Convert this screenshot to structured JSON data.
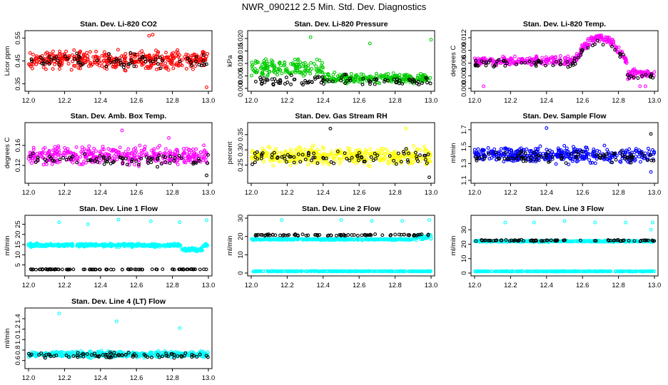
{
  "figure": {
    "title": "NWR_090212  2.5 Min. Std. Dev. Diagnostics"
  },
  "colors": {
    "red": "#ff0000",
    "green": "#00cc00",
    "magenta": "#ff00ff",
    "yellow": "#ffff00",
    "blue": "#0000ff",
    "cyan": "#00ffff",
    "black": "#000000"
  },
  "chart_data": [
    {
      "type": "scatter",
      "title": "Stan. Dev. Li-820 CO2",
      "ylabel": "Licor ppm",
      "xlim": [
        12.0,
        13.0
      ],
      "ylim": [
        0.33,
        0.57
      ],
      "xticks": [
        "12.0",
        "12.2",
        "12.4",
        "12.6",
        "12.8",
        "13.0"
      ],
      "yticks": [
        "0.35",
        "0.45",
        "0.55"
      ],
      "series": [
        {
          "color": "#ff0000",
          "x": [
            12.0,
            13.0
          ],
          "y": [
            0.34,
            0.56
          ],
          "summary": "dense band 0.36-0.55"
        },
        {
          "color": "#000000",
          "x": [
            12.0,
            13.0
          ],
          "y": [
            0.37,
            0.53
          ],
          "summary": "sparse points 0.37-0.53"
        }
      ]
    },
    {
      "type": "scatter",
      "title": "Stan. Dev. Li-820 Pressure",
      "ylabel": "kPa",
      "xlim": [
        12.0,
        13.0
      ],
      "ylim": [
        0.0,
        0.022
      ],
      "xticks": [
        "12.0",
        "12.2",
        "12.4",
        "12.6",
        "12.8",
        "13.0"
      ],
      "yticks": [
        "0.000",
        "0.005",
        "0.010",
        "0.015",
        "0.020"
      ],
      "series": [
        {
          "color": "#00cc00",
          "x": [
            12.0,
            13.0
          ],
          "y": [
            0.0,
            0.021
          ],
          "summary": "band 0.003-0.014 early, 0.001-0.006 later"
        },
        {
          "color": "#000000",
          "x": [
            12.0,
            13.0
          ],
          "y": [
            0.0,
            0.007
          ],
          "summary": "points 0-0.007"
        }
      ]
    },
    {
      "type": "scatter",
      "title": "Stan. Dev. Li-820 Temp.",
      "ylabel": "degrees C",
      "xlim": [
        12.0,
        13.0
      ],
      "ylim": [
        0.0,
        0.013
      ],
      "xticks": [
        "12.0",
        "12.2",
        "12.4",
        "12.6",
        "12.8",
        "13.0"
      ],
      "yticks": [
        "0.000",
        "0.003",
        "0.006",
        "0.009",
        "0.012"
      ],
      "series": [
        {
          "color": "#ff00ff",
          "x": [
            12.0,
            13.0
          ],
          "y": [
            0.0,
            0.013
          ],
          "summary": "~0.006 rising to peak ~0.012 near 12.7, falling to ~0.003"
        },
        {
          "color": "#000000",
          "x": [
            12.0,
            13.0
          ],
          "y": [
            0.002,
            0.012
          ],
          "summary": "follows magenta trend"
        }
      ]
    },
    {
      "type": "scatter",
      "title": "Stan. Dev. Amb. Box Temp.",
      "ylabel": "degrees C",
      "xlim": [
        12.0,
        13.0
      ],
      "ylim": [
        0.09,
        0.2
      ],
      "xticks": [
        "12.0",
        "12.2",
        "12.4",
        "12.6",
        "12.8",
        "13.0"
      ],
      "yticks": [
        "0.12",
        "0.16"
      ],
      "series": [
        {
          "color": "#ff00ff",
          "x": [
            12.0,
            13.0
          ],
          "y": [
            0.1,
            0.19
          ],
          "summary": "band 0.11-0.17"
        },
        {
          "color": "#000000",
          "x": [
            12.0,
            13.0
          ],
          "y": [
            0.1,
            0.15
          ],
          "summary": "points 0.11-0.15"
        }
      ]
    },
    {
      "type": "scatter",
      "title": "Stan. Dev. Gas Stream RH",
      "ylabel": "percent",
      "xlim": [
        12.0,
        13.0
      ],
      "ylim": [
        0.2,
        0.38
      ],
      "xticks": [
        "12.0",
        "12.2",
        "12.4",
        "12.6",
        "12.8",
        "13.0"
      ],
      "yticks": [
        "0.25",
        "0.30",
        "0.35"
      ],
      "series": [
        {
          "color": "#ffff00",
          "x": [
            12.0,
            13.0
          ],
          "y": [
            0.21,
            0.37
          ],
          "summary": "band 0.23-0.33"
        },
        {
          "color": "#000000",
          "x": [
            12.0,
            13.0
          ],
          "y": [
            0.21,
            0.37
          ],
          "summary": "points 0.23-0.32"
        }
      ]
    },
    {
      "type": "scatter",
      "title": "Stan. Dev. Sample Flow",
      "ylabel": "ml/min",
      "xlim": [
        12.0,
        13.0
      ],
      "ylim": [
        1.1,
        1.75
      ],
      "xticks": [
        "12.0",
        "12.2",
        "12.4",
        "12.6",
        "12.8",
        "13.0"
      ],
      "yticks": [
        "1.1",
        "1.3",
        "1.5",
        "1.7"
      ],
      "series": [
        {
          "color": "#0000ff",
          "x": [
            12.0,
            13.0
          ],
          "y": [
            1.15,
            1.72
          ],
          "summary": "band 1.2-1.55"
        },
        {
          "color": "#000000",
          "x": [
            12.0,
            13.0
          ],
          "y": [
            1.2,
            1.65
          ],
          "summary": "points 1.25-1.5"
        }
      ]
    },
    {
      "type": "scatter",
      "title": "Stan. Dev. Line 1 Flow",
      "ylabel": "ml/min",
      "xlim": [
        12.0,
        13.0
      ],
      "ylim": [
        1.0,
        28.0
      ],
      "xticks": [
        "12.0",
        "12.2",
        "12.4",
        "12.6",
        "12.8",
        "13.0"
      ],
      "yticks": [
        "5",
        "10",
        "15",
        "20",
        "25"
      ],
      "series": [
        {
          "color": "#00ffff",
          "x": [
            12.0,
            13.0
          ],
          "y": [
            11.0,
            27.0
          ],
          "summary": "band ~13-16, dip ~12 near 12.9, outliers ~26-27"
        },
        {
          "color": "#000000",
          "x": [
            12.0,
            13.0
          ],
          "y": [
            2.5,
            3.2
          ],
          "summary": "flat ~3"
        }
      ]
    },
    {
      "type": "scatter",
      "title": "Stan. Dev. Line 2 Flow",
      "ylabel": "ml/min",
      "xlim": [
        12.0,
        13.0
      ],
      "ylim": [
        0.0,
        30.0
      ],
      "xticks": [
        "12.0",
        "12.2",
        "12.4",
        "12.6",
        "12.8",
        "13.0"
      ],
      "yticks": [
        "0",
        "10",
        "20",
        "30"
      ],
      "series": [
        {
          "color": "#00ffff",
          "x": [
            12.0,
            13.0
          ],
          "y": [
            0.8,
            29.0
          ],
          "summary": "band ~18-19, low flat ~1, outliers ~28-29"
        },
        {
          "color": "#000000",
          "x": [
            12.0,
            13.0
          ],
          "y": [
            19.5,
            22.0
          ],
          "summary": "flat ~20-21"
        }
      ]
    },
    {
      "type": "scatter",
      "title": "Stan. Dev. Line 3 Flow",
      "ylabel": "ml/min",
      "xlim": [
        12.0,
        13.0
      ],
      "ylim": [
        0.0,
        38.0
      ],
      "xticks": [
        "12.0",
        "12.2",
        "12.4",
        "12.6",
        "12.8",
        "13.0"
      ],
      "yticks": [
        "0",
        "10",
        "20",
        "30"
      ],
      "series": [
        {
          "color": "#00ffff",
          "x": [
            12.0,
            13.0
          ],
          "y": [
            0.8,
            36.0
          ],
          "summary": "band ~22, low flat ~1, outliers ~35-36"
        },
        {
          "color": "#000000",
          "x": [
            12.0,
            13.0
          ],
          "y": [
            21.0,
            30.0
          ],
          "summary": "flat ~22-23"
        }
      ]
    },
    {
      "type": "scatter",
      "title": "Stan. Dev. Line 4 (LT) Flow",
      "ylabel": "ml/min",
      "xlim": [
        12.0,
        13.0
      ],
      "ylim": [
        0.5,
        1.55
      ],
      "xticks": [
        "12.0",
        "12.2",
        "12.4",
        "12.6",
        "12.8",
        "13.0"
      ],
      "yticks": [
        "0.6",
        "0.8",
        "1.0",
        "1.2",
        "1.4"
      ],
      "series": [
        {
          "color": "#00ffff",
          "x": [
            12.0,
            13.0
          ],
          "y": [
            0.55,
            1.5
          ],
          "summary": "band 0.6-0.85, outliers ~1.2-1.5"
        },
        {
          "color": "#000000",
          "x": [
            12.0,
            13.0
          ],
          "y": [
            0.55,
            0.9
          ],
          "summary": "points 0.6-0.85"
        }
      ]
    }
  ]
}
